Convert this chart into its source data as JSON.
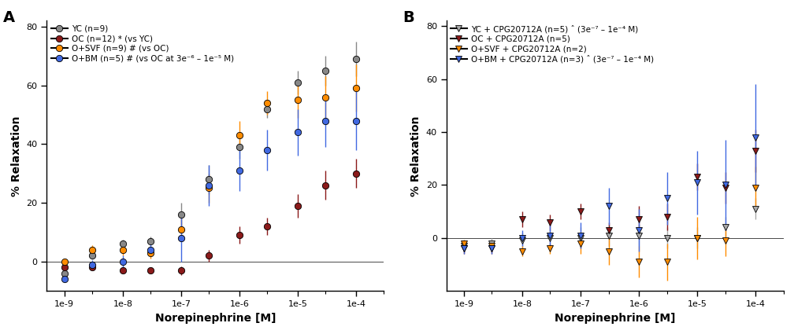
{
  "x_positions": [
    1e-09,
    3e-09,
    1e-08,
    3e-08,
    1e-07,
    3e-07,
    1e-06,
    3e-06,
    1e-05,
    3e-05,
    0.0001
  ],
  "panel_A": {
    "YC": {
      "mean": [
        -4,
        2,
        6,
        7,
        16,
        28,
        39,
        52,
        61,
        65,
        69
      ],
      "sem": [
        1.0,
        1.2,
        1.5,
        1.5,
        4,
        5,
        4,
        3,
        4,
        5,
        6
      ],
      "color": "#888888",
      "label": "YC (n=9)"
    },
    "OC": {
      "mean": [
        -2,
        -2,
        -3,
        -3,
        -3,
        2,
        9,
        12,
        19,
        26,
        30
      ],
      "sem": [
        0.8,
        0.8,
        1,
        1,
        1.5,
        2,
        3,
        3,
        4,
        5,
        5
      ],
      "color": "#8B1A1A",
      "label": "OC (n=12) * (vs YC)"
    },
    "OSVF": {
      "mean": [
        0,
        4,
        4,
        3,
        11,
        25,
        43,
        54,
        55,
        56,
        59
      ],
      "sem": [
        1,
        1.5,
        2,
        2,
        4,
        5,
        5,
        4,
        6,
        7,
        8
      ],
      "color": "#FF8C00",
      "label": "O+SVF (n=9) # (vs OC)"
    },
    "OBM": {
      "mean": [
        -6,
        -1,
        0,
        4,
        8,
        26,
        31,
        38,
        44,
        48,
        48
      ],
      "sem": [
        1,
        1.5,
        2,
        2,
        8,
        7,
        7,
        7,
        8,
        9,
        10
      ],
      "color": "#4169E1",
      "label": "O+BM (n=5) # (vs OC at 3e-6 - 1e-5 M)"
    }
  },
  "panel_B": {
    "YC_CPG": {
      "mean": [
        -3,
        -2,
        -1,
        0,
        0,
        1,
        1,
        0,
        0,
        4,
        11
      ],
      "sem": [
        2,
        2,
        3,
        3,
        4,
        4,
        4,
        4,
        4,
        4,
        4
      ],
      "color": "#A9A9A9",
      "label": "YC + CPG20712A (n=5) ^ (3e-7 - 1e-4 M)"
    },
    "OC_CPG": {
      "mean": [
        -4,
        -4,
        7,
        6,
        10,
        3,
        7,
        8,
        23,
        19,
        33
      ],
      "sem": [
        2,
        2,
        3,
        3,
        3,
        3,
        5,
        5,
        5,
        6,
        8
      ],
      "color": "#8B1A1A",
      "label": "OC + CPG20712A (n=5)"
    },
    "OSVF_CPG": {
      "mean": [
        -2,
        -3,
        -5,
        -4,
        -2,
        -5,
        -9,
        -9,
        0,
        -1,
        19
      ],
      "sem": [
        1.5,
        2,
        2,
        2,
        4,
        5,
        6,
        7,
        8,
        6,
        8
      ],
      "color": "#FF8C00",
      "label": "O+SVF + CPG20712A (n=2)"
    },
    "OBM_CPG": {
      "mean": [
        -4,
        -4,
        0,
        1,
        1,
        12,
        3,
        15,
        21,
        20,
        38
      ],
      "sem": [
        2,
        2,
        3,
        4,
        5,
        7,
        8,
        10,
        12,
        17,
        20
      ],
      "color": "#4169E1",
      "label": "O+BM + CPG20712A (n=3) ^ (3e-7 - 1e-4 M)"
    }
  },
  "ylim_A": [
    -10,
    82
  ],
  "ylim_B": [
    -20,
    82
  ],
  "yticks_A": [
    0,
    20,
    40,
    60,
    80
  ],
  "yticks_B": [
    0,
    20,
    40,
    60,
    80
  ],
  "xlabel": "Norepinephrine [M]",
  "ylabel": "% Relaxation",
  "background_color": "#ffffff",
  "panel_A_label_texts": {
    "OC_star": "*",
    "OC_vs": " (vs YC)",
    "OSVF_hash": "#",
    "OSVF_vs": " (vs OC)",
    "OBM_hash": "#",
    "OBM_vs": " (vs OC at 3e",
    "OBM_exp1": "-6",
    "OBM_mid": " - 1e",
    "OBM_exp2": "-5",
    "OBM_end": " M)"
  }
}
